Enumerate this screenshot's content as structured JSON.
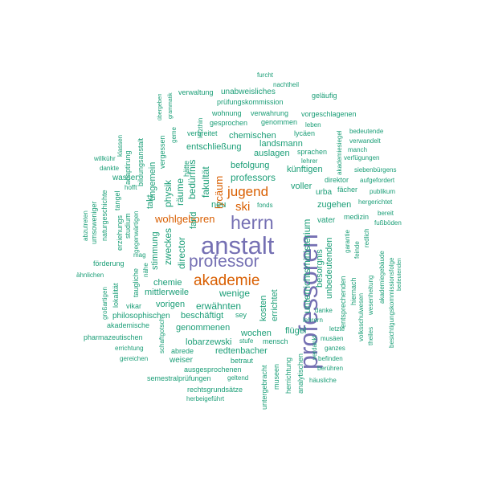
{
  "colors": {
    "teal": "#1b9e77",
    "orange": "#d95f02",
    "purple": "#7570b3"
  },
  "words": [
    {
      "text": "professoren",
      "color": "purple"
    },
    {
      "text": "anstalt",
      "color": "purple"
    },
    {
      "text": "professor",
      "color": "purple"
    },
    {
      "text": "herrn",
      "color": "purple"
    },
    {
      "text": "akademie",
      "color": "orange"
    },
    {
      "text": "jugend",
      "color": "orange"
    },
    {
      "text": "ski",
      "color": "orange"
    },
    {
      "text": "wohlgeboren",
      "color": "orange"
    },
    {
      "text": "lycäum",
      "color": "orange"
    },
    {
      "text": "furcht",
      "color": "teal"
    },
    {
      "text": "nachtheil",
      "color": "teal"
    },
    {
      "text": "verwaltung",
      "color": "teal"
    },
    {
      "text": "unabweisliches",
      "color": "teal"
    },
    {
      "text": "geläufig",
      "color": "teal"
    },
    {
      "text": "prüfungskommission",
      "color": "teal"
    },
    {
      "text": "wohnung",
      "color": "teal"
    },
    {
      "text": "verwahrung",
      "color": "teal"
    },
    {
      "text": "vorgeschlagenen",
      "color": "teal"
    },
    {
      "text": "gesprochen",
      "color": "teal"
    },
    {
      "text": "genommen",
      "color": "teal"
    },
    {
      "text": "leben",
      "color": "teal"
    },
    {
      "text": "verbreitet",
      "color": "teal"
    },
    {
      "text": "chemischen",
      "color": "teal"
    },
    {
      "text": "lycäen",
      "color": "teal"
    },
    {
      "text": "bedeutende",
      "color": "teal"
    },
    {
      "text": "verwandelt",
      "color": "teal"
    },
    {
      "text": "manch",
      "color": "teal"
    },
    {
      "text": "verfügungen",
      "color": "teal"
    },
    {
      "text": "entschließung",
      "color": "teal"
    },
    {
      "text": "landsmann",
      "color": "teal"
    },
    {
      "text": "auslagen",
      "color": "teal"
    },
    {
      "text": "sprachen",
      "color": "teal"
    },
    {
      "text": "lehrer",
      "color": "teal"
    },
    {
      "text": "befolgung",
      "color": "teal"
    },
    {
      "text": "künftigen",
      "color": "teal"
    },
    {
      "text": "siebenbürgens",
      "color": "teal"
    },
    {
      "text": "aufgefordert",
      "color": "teal"
    },
    {
      "text": "publikum",
      "color": "teal"
    },
    {
      "text": "professors",
      "color": "teal"
    },
    {
      "text": "direktor",
      "color": "teal"
    },
    {
      "text": "voller",
      "color": "teal"
    },
    {
      "text": "fächer",
      "color": "teal"
    },
    {
      "text": "urba",
      "color": "teal"
    },
    {
      "text": "hergerichtet",
      "color": "teal"
    },
    {
      "text": "neu",
      "color": "teal"
    },
    {
      "text": "fand",
      "color": "teal"
    },
    {
      "text": "fonds",
      "color": "teal"
    },
    {
      "text": "zugehen",
      "color": "teal"
    },
    {
      "text": "bereit",
      "color": "teal"
    },
    {
      "text": "medizin",
      "color": "teal"
    },
    {
      "text": "fußböden",
      "color": "teal"
    },
    {
      "text": "vater",
      "color": "teal"
    },
    {
      "text": "mittlerweile",
      "color": "teal"
    },
    {
      "text": "chemie",
      "color": "teal"
    },
    {
      "text": "wenige",
      "color": "teal"
    },
    {
      "text": "vorigen",
      "color": "teal"
    },
    {
      "text": "erwähnten",
      "color": "teal"
    },
    {
      "text": "beschäftigt",
      "color": "teal"
    },
    {
      "text": "sey",
      "color": "teal"
    },
    {
      "text": "danke",
      "color": "teal"
    },
    {
      "text": "philosophischen",
      "color": "teal"
    },
    {
      "text": "vikar",
      "color": "teal"
    },
    {
      "text": "akademische",
      "color": "teal"
    },
    {
      "text": "genommenen",
      "color": "teal"
    },
    {
      "text": "wochen",
      "color": "teal"
    },
    {
      "text": "flügel",
      "color": "teal"
    },
    {
      "text": "lehrern",
      "color": "teal"
    },
    {
      "text": "letzte",
      "color": "teal"
    },
    {
      "text": "pharmazeutischen",
      "color": "teal"
    },
    {
      "text": "lobarzewski",
      "color": "teal"
    },
    {
      "text": "errichtung",
      "color": "teal"
    },
    {
      "text": "abrede",
      "color": "teal"
    },
    {
      "text": "redtenbacher",
      "color": "teal"
    },
    {
      "text": "mensch",
      "color": "teal"
    },
    {
      "text": "stufe",
      "color": "teal"
    },
    {
      "text": "musäen",
      "color": "teal"
    },
    {
      "text": "ganzes",
      "color": "teal"
    },
    {
      "text": "gereichen",
      "color": "teal"
    },
    {
      "text": "weiser",
      "color": "teal"
    },
    {
      "text": "betraut",
      "color": "teal"
    },
    {
      "text": "befinden",
      "color": "teal"
    },
    {
      "text": "ausgesprochenen",
      "color": "teal"
    },
    {
      "text": "berühren",
      "color": "teal"
    },
    {
      "text": "semestralprüfungen",
      "color": "teal"
    },
    {
      "text": "geltend",
      "color": "teal"
    },
    {
      "text": "häusliche",
      "color": "teal"
    },
    {
      "text": "rechtsgrundsätze",
      "color": "teal"
    },
    {
      "text": "herbeigeführt",
      "color": "teal"
    },
    {
      "text": "förderung",
      "color": "teal"
    },
    {
      "text": "ähnlichen",
      "color": "teal"
    },
    {
      "text": "mag",
      "color": "teal"
    },
    {
      "text": "willkühr",
      "color": "teal"
    },
    {
      "text": "dankte",
      "color": "teal"
    },
    {
      "text": "wasser",
      "color": "teal"
    },
    {
      "text": "hofft",
      "color": "teal"
    },
    {
      "text": "unterrichtsministerium",
      "color": "teal"
    },
    {
      "text": "errichtet",
      "color": "teal"
    },
    {
      "text": "kosten",
      "color": "teal"
    },
    {
      "text": "besorgnis",
      "color": "teal"
    },
    {
      "text": "unbedeutenden",
      "color": "teal"
    },
    {
      "text": "entsprechenden",
      "color": "teal"
    },
    {
      "text": "hiernach",
      "color": "teal"
    },
    {
      "text": "feinde",
      "color": "teal"
    },
    {
      "text": "redlich",
      "color": "teal"
    },
    {
      "text": "garantie",
      "color": "teal"
    },
    {
      "text": "volksschulwesen",
      "color": "teal"
    },
    {
      "text": "wesenheitung",
      "color": "teal"
    },
    {
      "text": "akademiegebäude",
      "color": "teal"
    },
    {
      "text": "besichtigungskommissionsfolge",
      "color": "teal"
    },
    {
      "text": "theiles",
      "color": "teal"
    },
    {
      "text": "bedeutenden",
      "color": "teal"
    },
    {
      "text": "akademiesiegel",
      "color": "teal"
    },
    {
      "text": "herrichtung",
      "color": "teal"
    },
    {
      "text": "analytischen",
      "color": "teal"
    },
    {
      "text": "museen",
      "color": "teal"
    },
    {
      "text": "untergebracht",
      "color": "teal"
    },
    {
      "text": "verdankt",
      "color": "teal"
    },
    {
      "text": "fakultät",
      "color": "teal"
    },
    {
      "text": "bedürfnis",
      "color": "teal"
    },
    {
      "text": "räume",
      "color": "teal"
    },
    {
      "text": "hätte",
      "color": "teal"
    },
    {
      "text": "physik",
      "color": "teal"
    },
    {
      "text": "zweckes",
      "color": "teal"
    },
    {
      "text": "director",
      "color": "teal"
    },
    {
      "text": "stimmung",
      "color": "teal"
    },
    {
      "text": "ungemein",
      "color": "teal"
    },
    {
      "text": "takt",
      "color": "teal"
    },
    {
      "text": "vergessen",
      "color": "teal"
    },
    {
      "text": "geme",
      "color": "teal"
    },
    {
      "text": "letzthin",
      "color": "teal"
    },
    {
      "text": "grammatik",
      "color": "teal"
    },
    {
      "text": "übergeben",
      "color": "teal"
    },
    {
      "text": "bildungsanstalt",
      "color": "teal"
    },
    {
      "text": "adaptirung",
      "color": "teal"
    },
    {
      "text": "klassen",
      "color": "teal"
    },
    {
      "text": "studium",
      "color": "teal"
    },
    {
      "text": "gegenwärtigen",
      "color": "teal"
    },
    {
      "text": "erziehungs",
      "color": "teal"
    },
    {
      "text": "tangel",
      "color": "teal"
    },
    {
      "text": "naturgeschichte",
      "color": "teal"
    },
    {
      "text": "umsoweniger",
      "color": "teal"
    },
    {
      "text": "abzutreten",
      "color": "teal"
    },
    {
      "text": "taugliche",
      "color": "teal"
    },
    {
      "text": "nähe",
      "color": "teal"
    },
    {
      "text": "lokalität",
      "color": "teal"
    },
    {
      "text": "großartigen",
      "color": "teal"
    },
    {
      "text": "schaftgotsch",
      "color": "teal"
    }
  ]
}
